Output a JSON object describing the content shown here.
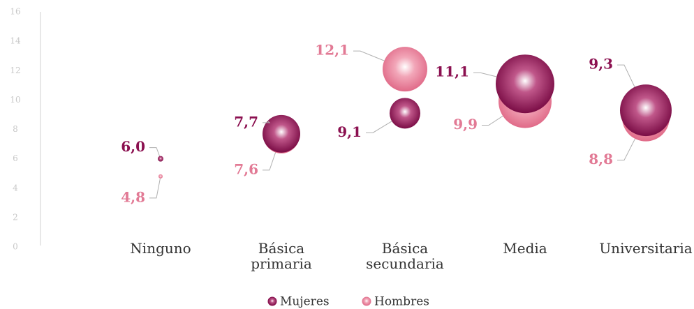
{
  "chart_data": {
    "type": "bubble",
    "categories": [
      "Ninguno",
      "Básica primaria",
      "Básica secundaria",
      "Media",
      "Universitaria"
    ],
    "series": [
      {
        "name": "Mujeres",
        "color": "#8b1050",
        "values": [
          6.0,
          7.7,
          9.1,
          11.1,
          9.3
        ],
        "value_labels": [
          "6,0",
          "7,7",
          "9,1",
          "11,1",
          "9,3"
        ],
        "sizes": [
          4,
          27,
          22,
          42,
          37
        ]
      },
      {
        "name": "Hombres",
        "color": "#e27a95",
        "values": [
          4.8,
          7.6,
          12.1,
          9.9,
          8.8
        ],
        "value_labels": [
          "4,8",
          "7,6",
          "12,1",
          "9,9",
          "8,8"
        ],
        "sizes": [
          3,
          26,
          32,
          38,
          34
        ]
      }
    ],
    "ylim": [
      0,
      16
    ],
    "yticks": [
      0,
      2,
      4,
      6,
      8,
      10,
      12,
      14,
      16
    ],
    "legend": "bottom"
  }
}
